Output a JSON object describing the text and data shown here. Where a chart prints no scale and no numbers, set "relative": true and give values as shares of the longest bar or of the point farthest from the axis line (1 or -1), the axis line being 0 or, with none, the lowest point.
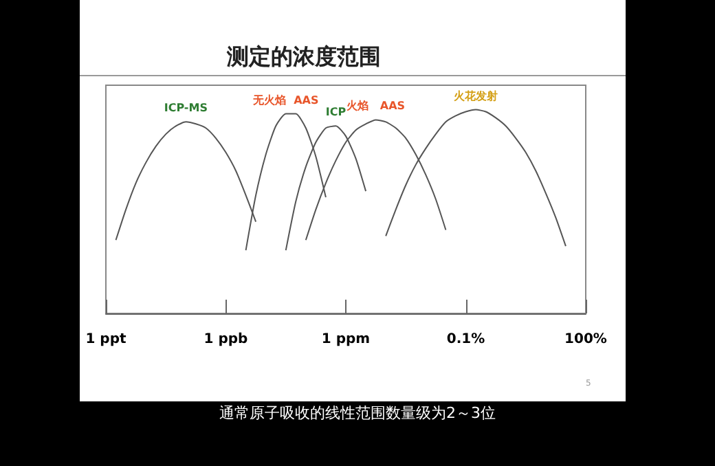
{
  "chart_data": {
    "type": "line",
    "title": "测定的浓度范围",
    "relative": true,
    "categories": [
      "1 ppt",
      null,
      null,
      null,
      null,
      null,
      null,
      null,
      null,
      null,
      null,
      null,
      "1 ppb",
      null,
      null,
      null,
      null,
      null,
      null,
      null,
      null,
      null,
      null,
      null,
      "1 ppm",
      null,
      null,
      null,
      null,
      null,
      null,
      null,
      null,
      null,
      null,
      null,
      "0.1%",
      null,
      null,
      null,
      null,
      null,
      null,
      null,
      null,
      null,
      null,
      null,
      "100%"
    ],
    "series": [
      {
        "name": "ICP-MS",
        "color": "#555555",
        "values": [
          null,
          0.36,
          0.51,
          0.64,
          0.74,
          0.82,
          0.88,
          0.92,
          0.94,
          0.93,
          0.91,
          0.86,
          0.79,
          0.7,
          0.58,
          0.45,
          null,
          null,
          null,
          null,
          null,
          null,
          null,
          null,
          null,
          null,
          null,
          null,
          null,
          null,
          null,
          null,
          null,
          null,
          null,
          null,
          null,
          null,
          null,
          null,
          null,
          null,
          null,
          null,
          null,
          null,
          null,
          null,
          null
        ]
      },
      {
        "name": "无火焰  AAS",
        "color": "#555555",
        "values": [
          null,
          null,
          null,
          null,
          null,
          null,
          null,
          null,
          null,
          null,
          null,
          null,
          null,
          null,
          0.31,
          0.58,
          0.78,
          0.92,
          0.98,
          0.98,
          0.91,
          0.77,
          0.57,
          null,
          null,
          null,
          null,
          null,
          null,
          null,
          null,
          null,
          null,
          null,
          null,
          null,
          null,
          null,
          null,
          null,
          null,
          null,
          null,
          null,
          null,
          null,
          null,
          null,
          null
        ]
      },
      {
        "name": "ICP",
        "color": "#555555",
        "values": [
          null,
          null,
          null,
          null,
          null,
          null,
          null,
          null,
          null,
          null,
          null,
          null,
          null,
          null,
          null,
          null,
          null,
          null,
          0.31,
          0.55,
          0.72,
          0.84,
          0.91,
          0.92,
          0.87,
          0.76,
          0.6,
          null,
          null,
          null,
          null,
          null,
          null,
          null,
          null,
          null,
          null,
          null,
          null,
          null,
          null,
          null,
          null,
          null,
          null,
          null,
          null,
          null,
          null
        ]
      },
      {
        "name": "火焰   AAS",
        "color": "#555555",
        "values": [
          null,
          null,
          null,
          null,
          null,
          null,
          null,
          null,
          null,
          null,
          null,
          null,
          null,
          null,
          null,
          null,
          null,
          null,
          null,
          null,
          0.36,
          0.51,
          0.64,
          0.75,
          0.84,
          0.9,
          0.93,
          0.95,
          0.94,
          0.91,
          0.86,
          0.78,
          0.68,
          0.56,
          0.41,
          null,
          null,
          null,
          null,
          null,
          null,
          null,
          null,
          null,
          null,
          null,
          null,
          null,
          null
        ]
      },
      {
        "name": "火花发射",
        "color": "#555555",
        "values": [
          null,
          null,
          null,
          null,
          null,
          null,
          null,
          null,
          null,
          null,
          null,
          null,
          null,
          null,
          null,
          null,
          null,
          null,
          null,
          null,
          null,
          null,
          null,
          null,
          null,
          null,
          null,
          null,
          0.38,
          0.51,
          0.63,
          0.73,
          0.81,
          0.88,
          0.94,
          0.97,
          0.99,
          1.0,
          0.99,
          0.96,
          0.92,
          0.86,
          0.79,
          0.7,
          0.59,
          0.47,
          0.33,
          null,
          null
        ]
      }
    ],
    "annotations": [
      "通常原子吸收的线性范围数量级为2～3位",
      "5"
    ],
    "marker": "none",
    "line_style": "solid",
    "grid": false,
    "legend": false
  }
}
